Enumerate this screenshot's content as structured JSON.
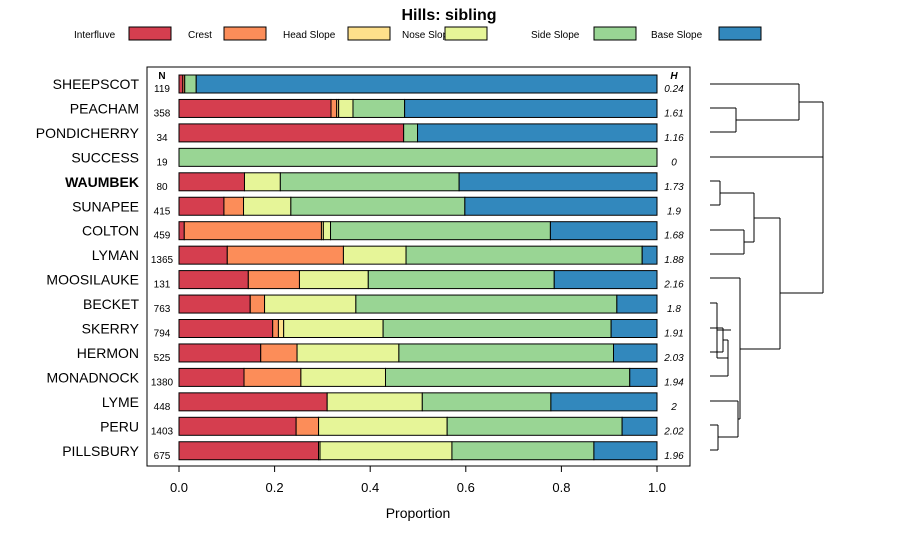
{
  "chart_data": {
    "type": "bar",
    "orientation": "horizontal",
    "stacked": true,
    "title": "Hills: sibling",
    "xlabel": "Proportion",
    "ylabel": "",
    "xlim": [
      0,
      1
    ],
    "xticks": [
      "0.0",
      "0.2",
      "0.4",
      "0.6",
      "0.8",
      "1.0"
    ],
    "xtick_values": [
      0,
      0.2,
      0.4,
      0.6,
      0.8,
      1.0
    ],
    "n_header": "N",
    "h_header": "H",
    "legend_position": "top",
    "classes": [
      {
        "name": "Interfluve",
        "color": "#D53E4F"
      },
      {
        "name": "Crest",
        "color": "#FC8D59"
      },
      {
        "name": "Head Slope",
        "color": "#FEE08B"
      },
      {
        "name": "Nose Slope",
        "color": "#E6F598"
      },
      {
        "name": "Side Slope",
        "color": "#99D594"
      },
      {
        "name": "Base Slope",
        "color": "#3288BD"
      }
    ],
    "categories": [
      "SHEEPSCOT",
      "PEACHAM",
      "PONDICHERRY",
      "SUCCESS",
      "WAUMBEK",
      "SUNAPEE",
      "COLTON",
      "LYMAN",
      "MOOSILAUKE",
      "BECKET",
      "SKERRY",
      "HERMON",
      "MONADNOCK",
      "LYME",
      "PERU",
      "PILLSBURY"
    ],
    "highlight": "WAUMBEK",
    "n_values": [
      "119",
      "358",
      "34",
      "19",
      "80",
      "415",
      "459",
      "1365",
      "131",
      "763",
      "794",
      "525",
      "1380",
      "448",
      "1403",
      "675"
    ],
    "h_values": [
      "0.24",
      "1.61",
      "1.16",
      "0",
      "1.73",
      "1.9",
      "1.68",
      "1.88",
      "2.16",
      "1.8",
      "1.91",
      "2.03",
      "1.94",
      "2",
      "2.02",
      "1.96"
    ],
    "series": [
      {
        "name": "Interfluve",
        "values": [
          0.008,
          0.318,
          0.47,
          0,
          0.137,
          0.094,
          0.011,
          0.101,
          0.145,
          0.149,
          0.196,
          0.171,
          0.136,
          0.31,
          0.245,
          0.292
        ]
      },
      {
        "name": "Crest",
        "values": [
          0.004,
          0.012,
          0,
          0,
          0,
          0.041,
          0.287,
          0.243,
          0.107,
          0.03,
          0.012,
          0.076,
          0.119,
          0,
          0.047,
          0
        ]
      },
      {
        "name": "Head Slope",
        "values": [
          0,
          0.004,
          0,
          0,
          0,
          0,
          0.004,
          0,
          0,
          0,
          0.011,
          0,
          0,
          0,
          0,
          0.003
        ]
      },
      {
        "name": "Nose Slope",
        "values": [
          0,
          0.03,
          0,
          0,
          0.075,
          0.099,
          0.015,
          0.131,
          0.144,
          0.191,
          0.208,
          0.213,
          0.177,
          0.199,
          0.269,
          0.276
        ]
      },
      {
        "name": "Side Slope",
        "values": [
          0.024,
          0.108,
          0.029,
          1.0,
          0.374,
          0.364,
          0.46,
          0.494,
          0.389,
          0.546,
          0.477,
          0.449,
          0.511,
          0.269,
          0.366,
          0.297
        ]
      },
      {
        "name": "Base Slope",
        "values": [
          0.964,
          0.528,
          0.501,
          0,
          0.414,
          0.402,
          0.223,
          0.031,
          0.215,
          0.084,
          0.096,
          0.091,
          0.057,
          0.222,
          0.073,
          0.132
        ]
      }
    ]
  }
}
